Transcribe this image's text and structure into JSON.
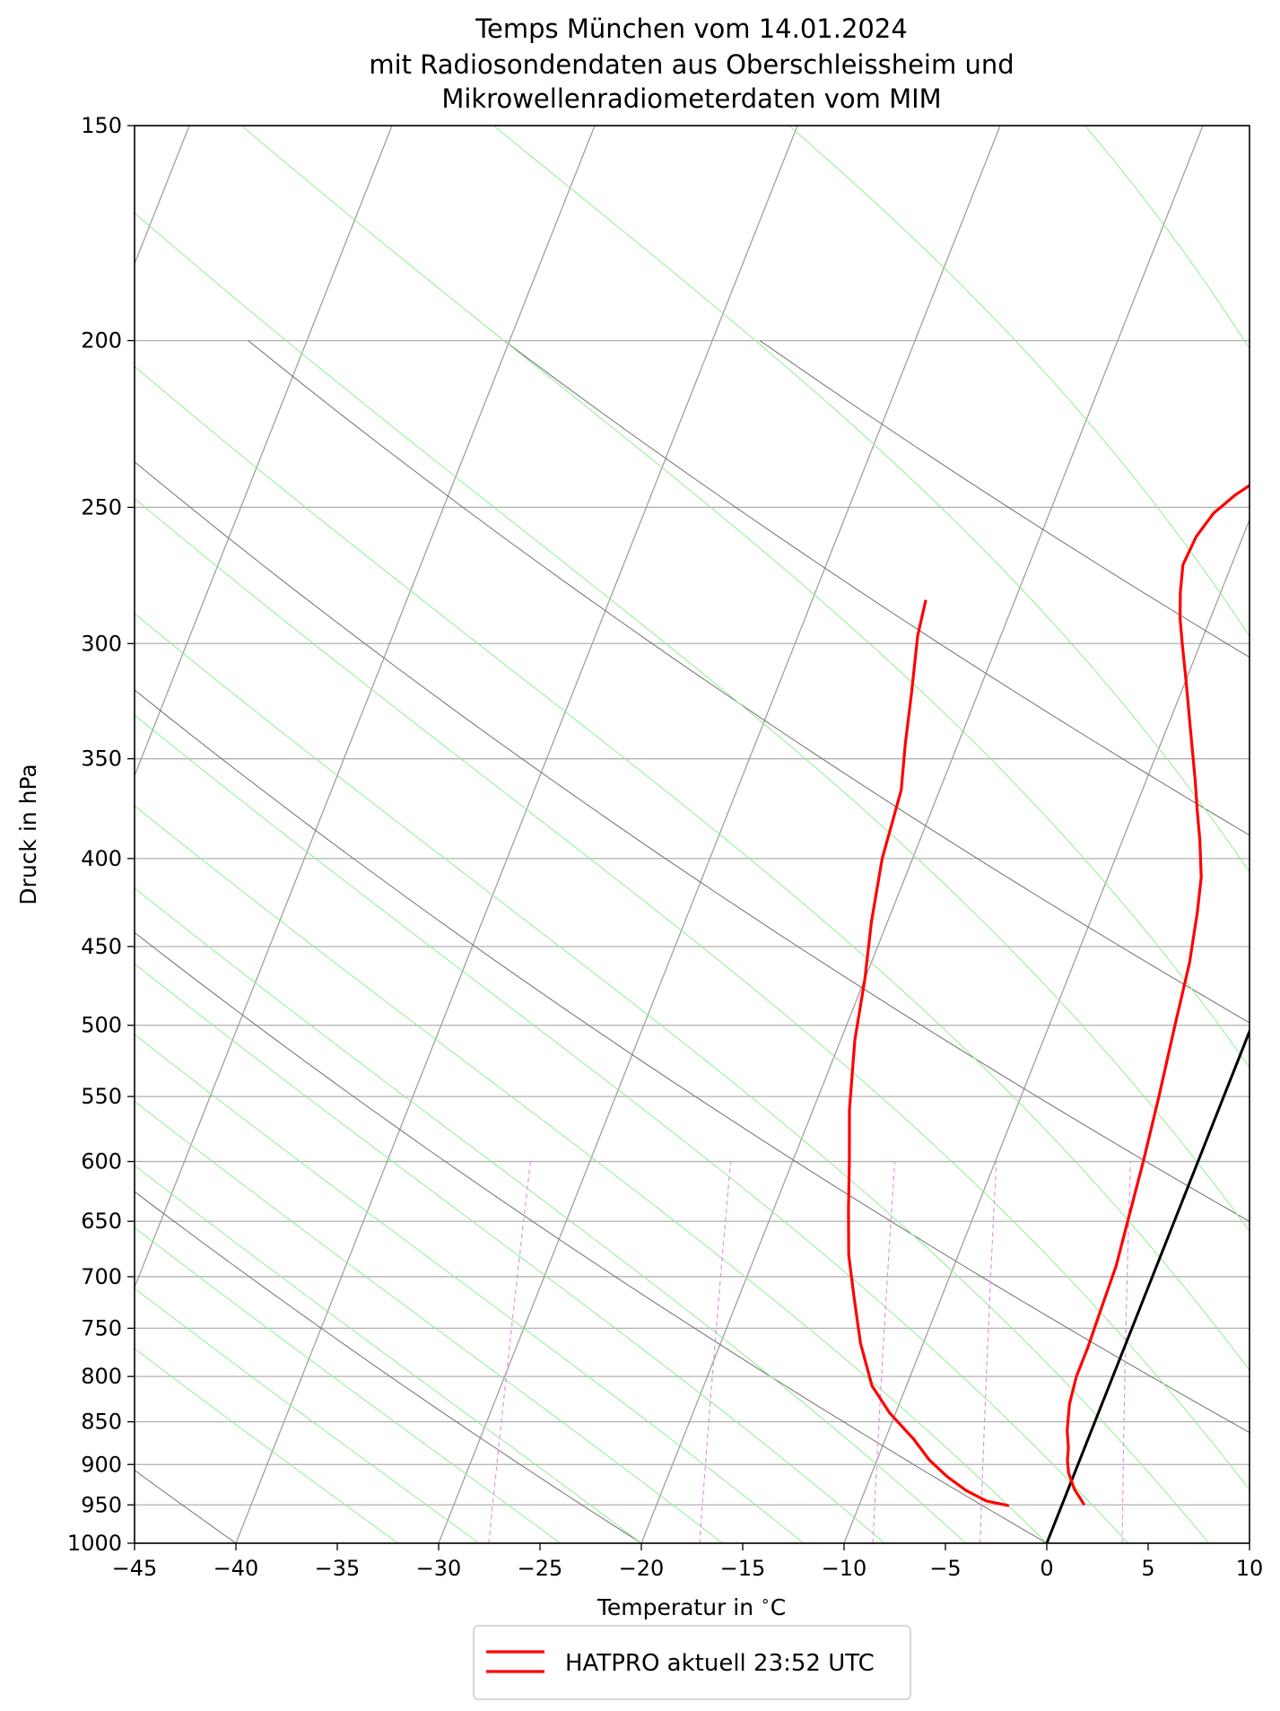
{
  "chart_data": {
    "type": "line",
    "chart_kind": "skew-T log-p diagram",
    "title_lines": [
      "Temps München vom 14.01.2024",
      "mit Radiosondendaten aus Oberschleissheim und",
      "Mikrowellenradiometerdaten vom MIM"
    ],
    "xlabel": "Temperatur in $^\\circ$C",
    "ylabel": "Druck in hPa",
    "xlim": [
      -45,
      10
    ],
    "ylim": [
      1000,
      150
    ],
    "y_scale": "log",
    "x_ticks": [
      -45,
      -40,
      -35,
      -30,
      -25,
      -20,
      -15,
      -10,
      -5,
      0,
      5,
      10
    ],
    "x_tick_labels": [
      "−45",
      "−40",
      "−35",
      "−30",
      "−25",
      "−20",
      "−15",
      "−10",
      "−5",
      "0",
      "5",
      "10"
    ],
    "y_ticks": [
      1000,
      950,
      900,
      850,
      800,
      750,
      700,
      650,
      600,
      550,
      500,
      450,
      400,
      350,
      300,
      250,
      200,
      150
    ],
    "y_tick_labels": [
      "1000",
      "950",
      "900",
      "850",
      "800",
      "750",
      "700",
      "650",
      "600",
      "550",
      "500",
      "450",
      "400",
      "350",
      "300",
      "250",
      "200",
      "150"
    ],
    "grid": true,
    "legend": {
      "placement": "below",
      "entries": [
        "HATPRO aktuell 23:52 UTC"
      ]
    },
    "colors": {
      "profile": "#ff0000",
      "isotherm": "#a0a0a0",
      "zero_isotherm": "#000000",
      "dry_adiabat": "#707070",
      "moist_adiabat": "#90ee90",
      "mixing_ratio": "#ee82ee",
      "grid": "#b0b0b0"
    },
    "series": [
      {
        "name": "HATPRO aktuell 23:52 UTC",
        "role": "temperature",
        "points": [
          [
            -10.2,
            240
          ],
          [
            -11.2,
            246
          ],
          [
            -11.9,
            252
          ],
          [
            -12.3,
            260
          ],
          [
            -12.4,
            270
          ],
          [
            -12.0,
            280
          ],
          [
            -11.5,
            290
          ],
          [
            -10.9,
            300
          ],
          [
            -10.0,
            315
          ],
          [
            -8.9,
            335
          ],
          [
            -7.6,
            360
          ],
          [
            -6.9,
            375
          ],
          [
            -6.2,
            390
          ],
          [
            -5.4,
            410
          ],
          [
            -4.9,
            430
          ],
          [
            -4.3,
            460
          ],
          [
            -3.8,
            500
          ],
          [
            -3.2,
            550
          ],
          [
            -2.7,
            600
          ],
          [
            -2.3,
            650
          ],
          [
            -2.0,
            690
          ],
          [
            -1.9,
            730
          ],
          [
            -1.8,
            770
          ],
          [
            -1.8,
            800
          ],
          [
            -1.6,
            830
          ],
          [
            -1.2,
            860
          ],
          [
            -0.8,
            880
          ],
          [
            -0.6,
            895
          ],
          [
            -0.3,
            910
          ],
          [
            0.3,
            930
          ],
          [
            1.1,
            950
          ]
        ]
      },
      {
        "name": "HATPRO aktuell 23:52 UTC",
        "role": "second profile",
        "points": [
          [
            -24.4,
            283
          ],
          [
            -24.1,
            297
          ],
          [
            -23.3,
            320
          ],
          [
            -22.6,
            343
          ],
          [
            -21.9,
            365
          ],
          [
            -21.5,
            400
          ],
          [
            -20.8,
            435
          ],
          [
            -20.0,
            470
          ],
          [
            -19.3,
            510
          ],
          [
            -18.2,
            560
          ],
          [
            -17.2,
            600
          ],
          [
            -16.3,
            640
          ],
          [
            -15.4,
            680
          ],
          [
            -14.3,
            720
          ],
          [
            -13.1,
            765
          ],
          [
            -11.7,
            810
          ],
          [
            -10.3,
            840
          ],
          [
            -8.6,
            870
          ],
          [
            -7.4,
            895
          ],
          [
            -6.2,
            915
          ],
          [
            -5.0,
            932
          ],
          [
            -3.8,
            945
          ],
          [
            -2.6,
            951
          ]
        ]
      }
    ]
  }
}
